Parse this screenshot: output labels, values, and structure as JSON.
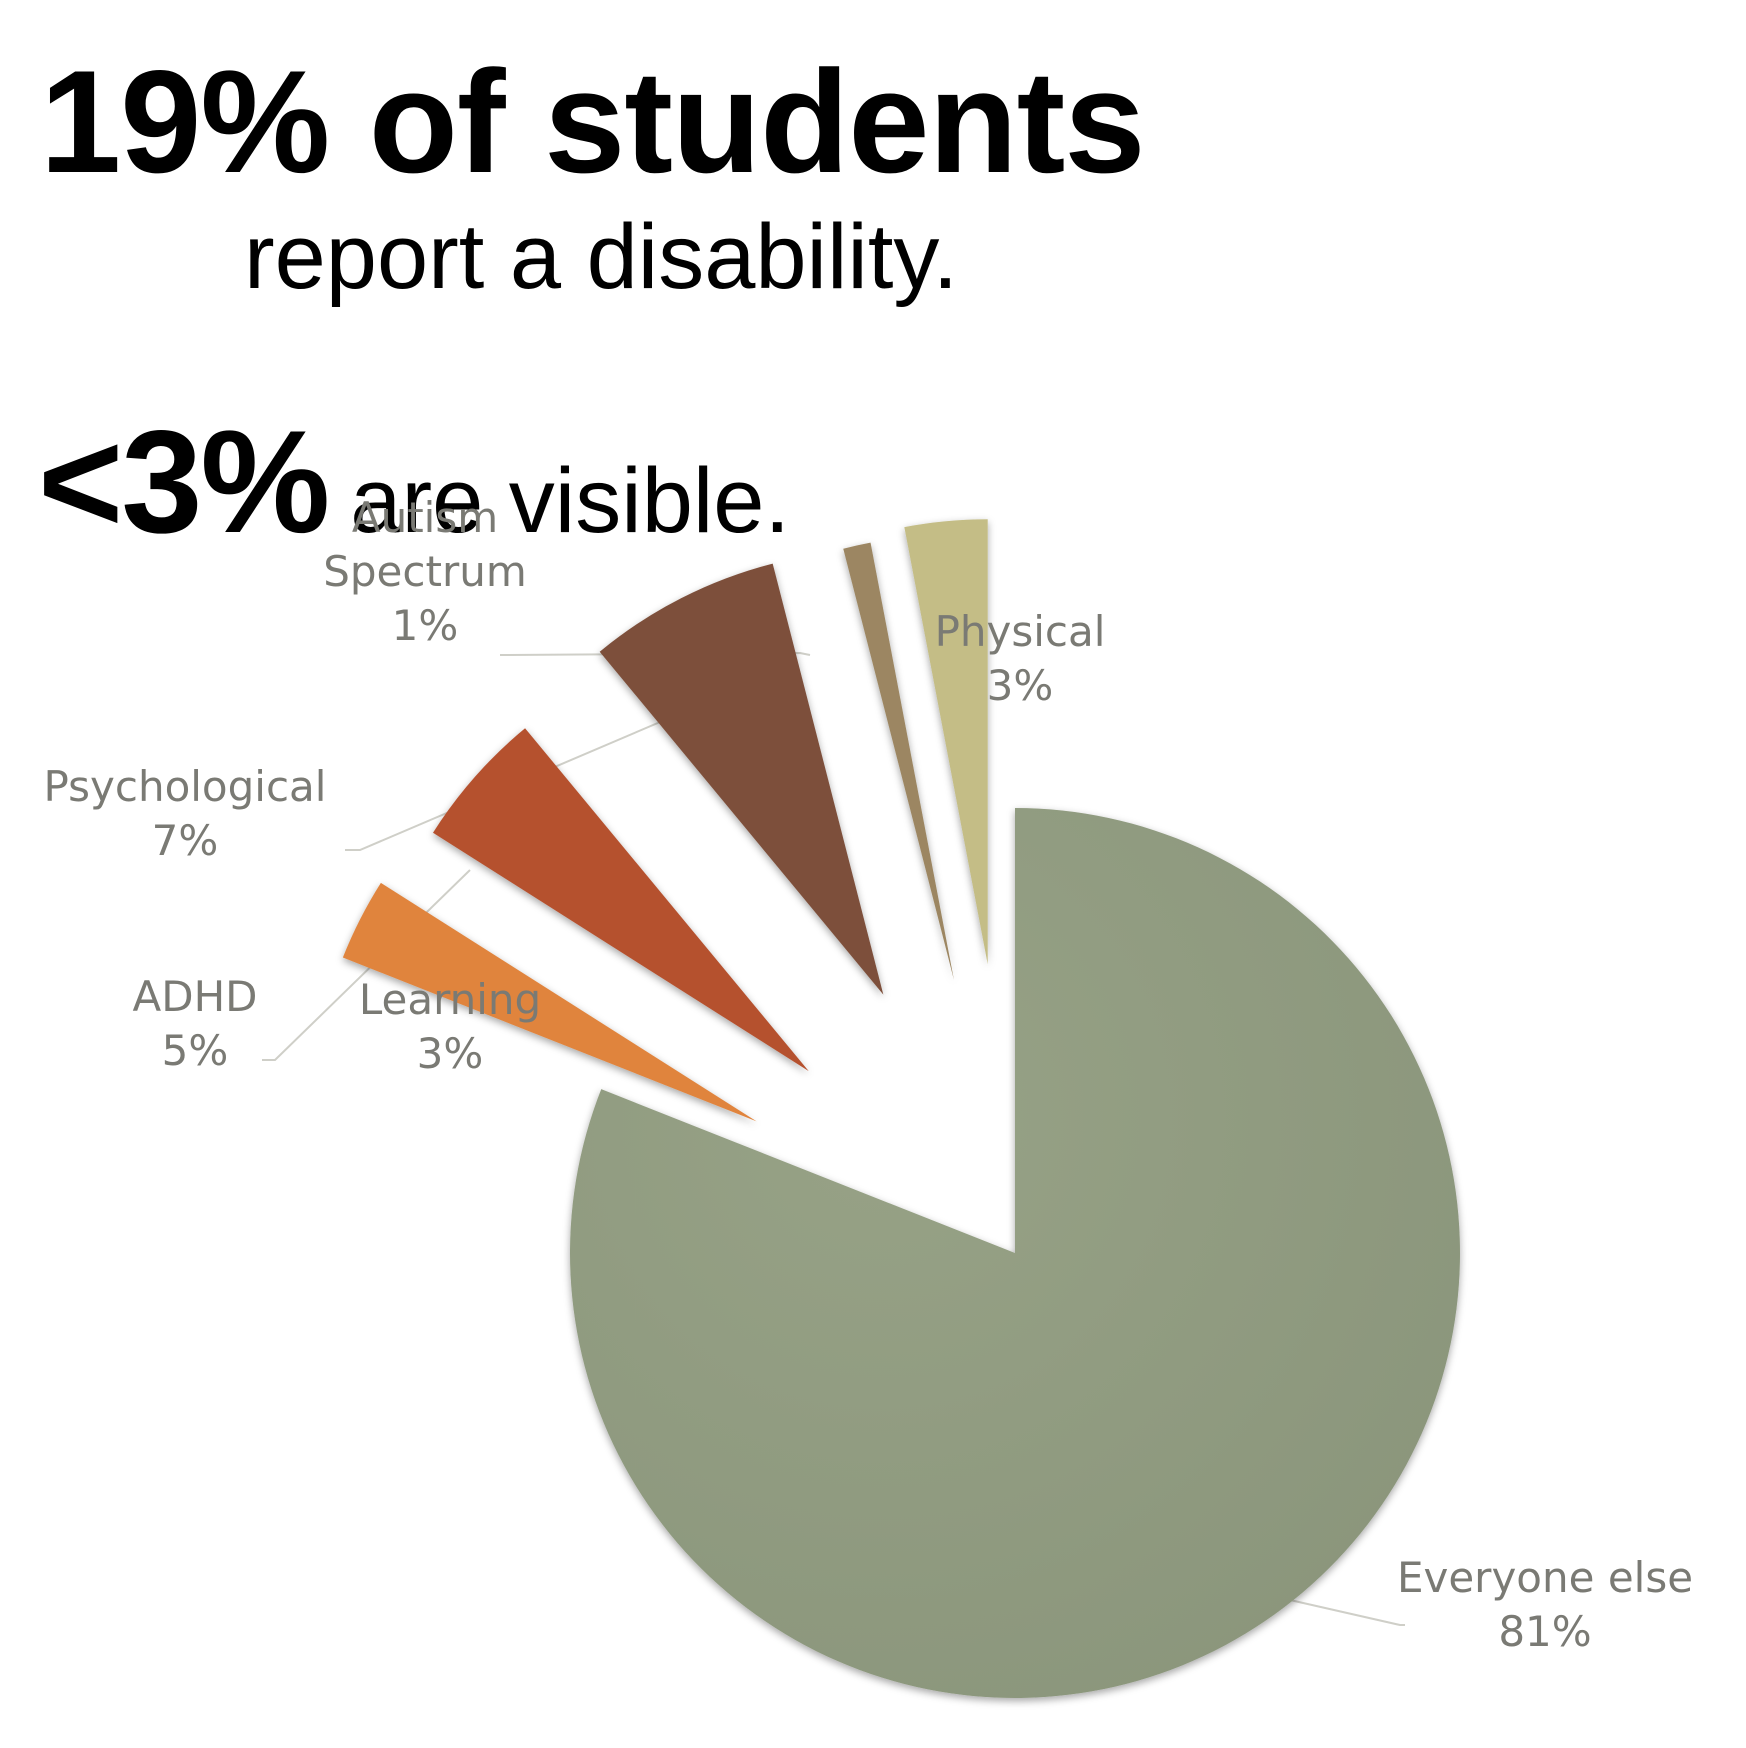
{
  "headline": {
    "big": "19% of students",
    "sub": "report a disability.",
    "visible_big": "<3%",
    "visible_rest": "are visible."
  },
  "chart_data": {
    "type": "pie",
    "exploded": true,
    "slices": [
      {
        "label": "Everyone else",
        "value_text": "81%",
        "value": 81,
        "color": "#8f9a7f"
      },
      {
        "label": "Learning",
        "value_text": "3%",
        "value": 3,
        "color": "#e0843e"
      },
      {
        "label": "ADHD",
        "value_text": "5%",
        "value": 5,
        "color": "#b5512e"
      },
      {
        "label": "Psychological",
        "value_text": "7%",
        "value": 7,
        "color": "#7d4f3a"
      },
      {
        "label": "Autism Spectrum",
        "value_text": "1%",
        "value": 1,
        "color": "#9c8662"
      },
      {
        "label": "Physical",
        "value_text": "3%",
        "value": 3,
        "color": "#c4bd86"
      }
    ]
  }
}
